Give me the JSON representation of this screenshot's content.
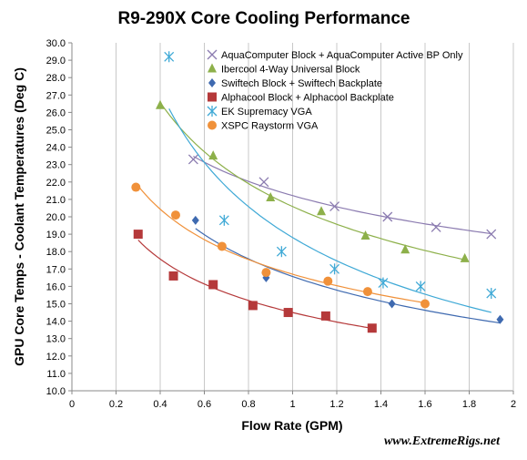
{
  "chart_data": {
    "type": "scatter",
    "title": "R9-290X Core Cooling Performance",
    "xlabel": "Flow Rate (GPM)",
    "ylabel": "GPU Core Temps - Coolant Temperatures (Deg C)",
    "xlim": [
      0,
      2
    ],
    "ylim": [
      10,
      30
    ],
    "x_ticks": [
      "0",
      "0.2",
      "0.4",
      "0.6",
      "0.8",
      "1",
      "1.2",
      "1.4",
      "1.6",
      "1.8",
      "2"
    ],
    "y_ticks": [
      "10.0",
      "11.0",
      "12.0",
      "13.0",
      "14.0",
      "15.0",
      "16.0",
      "17.0",
      "18.0",
      "19.0",
      "20.0",
      "21.0",
      "22.0",
      "23.0",
      "24.0",
      "25.0",
      "26.0",
      "27.0",
      "28.0",
      "29.0",
      "30.0"
    ],
    "grid": "vertical",
    "legend_position": "top-right",
    "trendlines": true,
    "watermark": "www.ExtremeRigs.net",
    "series": [
      {
        "name": "AquaComputer Block + AquaComputer Active BP Only",
        "marker": "x",
        "color": "#8B7BB0",
        "x": [
          0.55,
          0.87,
          1.19,
          1.43,
          1.65,
          1.9
        ],
        "y": [
          23.3,
          22.0,
          20.6,
          20.0,
          19.4,
          19.0
        ]
      },
      {
        "name": "Ibercool 4-Way Universal Block",
        "marker": "triangle",
        "color": "#8DB04A",
        "x": [
          0.4,
          0.64,
          0.9,
          1.13,
          1.33,
          1.51,
          1.78
        ],
        "y": [
          26.4,
          23.5,
          21.1,
          20.3,
          18.9,
          18.1,
          17.6
        ]
      },
      {
        "name": "Swiftech Block + Swiftech Backplate",
        "marker": "diamond",
        "color": "#3F6AB0",
        "x": [
          0.56,
          0.88,
          1.45,
          1.94
        ],
        "y": [
          19.8,
          16.5,
          15.0,
          14.1
        ]
      },
      {
        "name": "Alphacool Block + Alphacool Backplate",
        "marker": "square",
        "color": "#B5393A",
        "x": [
          0.3,
          0.46,
          0.64,
          0.82,
          0.98,
          1.15,
          1.36
        ],
        "y": [
          19.0,
          16.6,
          16.1,
          14.9,
          14.5,
          14.3,
          13.6
        ]
      },
      {
        "name": "EK Supremacy VGA",
        "marker": "asterisk",
        "color": "#3FA9D6",
        "x": [
          0.44,
          0.69,
          0.95,
          1.19,
          1.41,
          1.58,
          1.9
        ],
        "y": [
          29.2,
          19.8,
          18.0,
          17.0,
          16.2,
          16.0,
          15.6
        ]
      },
      {
        "name": "XSPC Raystorm VGA",
        "marker": "circle",
        "color": "#F0913A",
        "x": [
          0.29,
          0.47,
          0.68,
          0.88,
          1.16,
          1.34,
          1.6
        ],
        "y": [
          21.7,
          20.1,
          18.3,
          16.8,
          16.3,
          15.7,
          15.0
        ]
      }
    ]
  }
}
